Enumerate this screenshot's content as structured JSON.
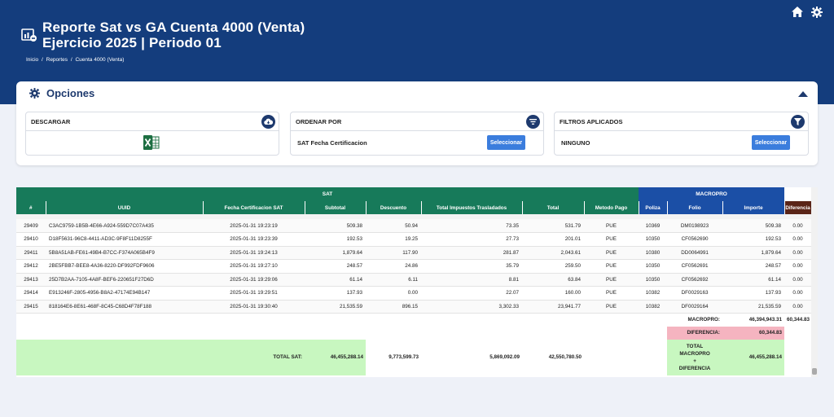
{
  "header": {
    "title_line1": "Reporte Sat vs GA Cuenta 4000 (Venta)",
    "title_line2": "Ejercicio 2025 | Periodo 01",
    "breadcrumb": [
      "Inicio",
      "/",
      "Reportes",
      "/",
      "Cuenta 4000 (Venta)"
    ],
    "icons": [
      "home-icon",
      "gear-icon"
    ]
  },
  "options": {
    "title": "Opciones",
    "download": {
      "label": "DESCARGAR",
      "icon": "cloud-download-icon",
      "file_icon": "excel-icon"
    },
    "sort": {
      "label": "ORDENAR POR",
      "value": "SAT Fecha Certificacion",
      "button": "Seleccionar"
    },
    "filters": {
      "label": "FILTROS APLICADOS",
      "value": "NINGUNO",
      "button": "Seleccionar"
    }
  },
  "table": {
    "group_sat": "SAT",
    "group_macropro": "MACROPRO",
    "columns": [
      "#",
      "UUID",
      "Fecha Certificacion SAT",
      "Subtotal",
      "Descuento",
      "Total Impuestos Trasladados",
      "Total",
      "Metodo Pago",
      "Poliza",
      "Folio",
      "Importe",
      "Diferencia"
    ],
    "rows": [
      [
        "29409",
        "C3AC9759-1B5B-4E66-A924-559D7C07A435",
        "2025-01-31 19:23:19",
        "509.38",
        "50.94",
        "73.35",
        "531.79",
        "PUE",
        "10369",
        "DM0198923",
        "509.38",
        "0.00"
      ],
      [
        "29410",
        "D18F5631-96C8-4411-AD3C-9F8F11D8255F",
        "2025-01-31 19:23:39",
        "192.53",
        "19.25",
        "27.73",
        "201.01",
        "PUE",
        "10350",
        "CF0562690",
        "192.53",
        "0.00"
      ],
      [
        "29411",
        "5B8A51AB-FE61-49B4-B7CC-F374A065B4F9",
        "2025-01-31 19:24:13",
        "1,879.64",
        "117.90",
        "281.87",
        "2,043.61",
        "PUE",
        "10380",
        "DD0064991",
        "1,879.64",
        "0.00"
      ],
      [
        "29412",
        "2BE5FBB7-BEE8-4A36-8220-DF992FDF9606",
        "2025-01-31 19:27:10",
        "248.57",
        "24.86",
        "35.79",
        "259.50",
        "PUE",
        "10350",
        "CF0562691",
        "248.57",
        "0.00"
      ],
      [
        "29413",
        "25D7B2AA-7105-4A8F-BEF6-220651F27D6D",
        "2025-01-31 19:29:06",
        "61.14",
        "6.11",
        "8.81",
        "63.84",
        "PUE",
        "10350",
        "CF0562692",
        "61.14",
        "0.00"
      ],
      [
        "29414",
        "E913246F-2805-4956-B8A2-47174E94B147",
        "2025-01-31 19:29:51",
        "137.93",
        "0.00",
        "22.07",
        "160.00",
        "PUE",
        "10382",
        "DF0029163",
        "137.93",
        "0.00"
      ],
      [
        "29415",
        "818164E6-8E61-468F-8C45-C68D4F78F188",
        "2025-01-31 19:30:40",
        "21,535.59",
        "896.15",
        "3,302.33",
        "23,941.77",
        "PUE",
        "10382",
        "DF0029164",
        "21,535.59",
        "0.00"
      ]
    ],
    "summary": {
      "macropro_label": "MACROPRO:",
      "macropro_value": "46,394,943.31",
      "macropro_diff": "60,344.83",
      "diferencia_label": "DIFERENCIA:",
      "diferencia_value": "60,344.83",
      "total_sat_label": "TOTAL SAT:",
      "total_subtotal": "46,455,288.14",
      "total_descuento": "9,773,599.73",
      "total_impuestos": "5,869,092.09",
      "total_total": "42,550,780.50",
      "total_macropro_label_1": "TOTAL",
      "total_macropro_label_2": "MACROPRO",
      "total_macropro_label_3": "+",
      "total_macropro_label_4": "DIFERENCIA",
      "total_macropro_value": "46,455,288.14"
    }
  },
  "colors": {
    "header_bg": "#143d7d",
    "sat_green": "#177a5a",
    "macropro_blue": "#1b4fa6",
    "diferencia_brown": "#5a2417",
    "button_blue": "#3b7ddd",
    "pink": "#f5b4c0",
    "light_green": "#c8f7c0"
  }
}
